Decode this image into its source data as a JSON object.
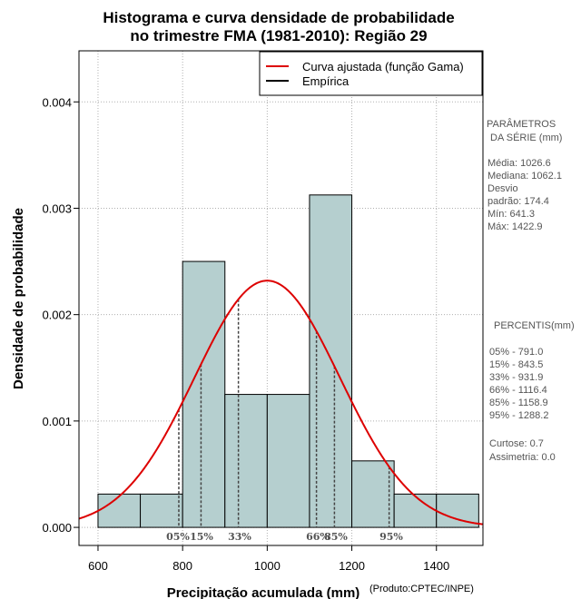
{
  "chart_data": {
    "type": "histogram",
    "title_line1": "Histograma e curva densidade de probabilidade",
    "title_line2": "no trimestre FMA (1981-2010): Região 29",
    "xlabel": "Precipitação acumulada (mm)",
    "ylabel": "Densidade de probabilidade",
    "credit": "(Produto:CPTEC/INPE)",
    "xlim": [
      555,
      1510
    ],
    "ylim": [
      -0.00017,
      0.00448
    ],
    "x_ticks": [
      600,
      800,
      1000,
      1200,
      1400
    ],
    "x_tick_labels": [
      "600",
      "800",
      "1000",
      "1200",
      "1400"
    ],
    "y_ticks": [
      0,
      0.001,
      0.002,
      0.003,
      0.004
    ],
    "y_tick_labels": [
      "0.000",
      "0.001",
      "0.002",
      "0.003",
      "0.004"
    ],
    "grid": true,
    "bar_color": "#b5cfcf",
    "curve_color": "#dd0000",
    "bins": [
      {
        "start": 600,
        "end": 700,
        "density": 0.000313
      },
      {
        "start": 700,
        "end": 800,
        "density": 0.000313
      },
      {
        "start": 800,
        "end": 900,
        "density": 0.0025
      },
      {
        "start": 900,
        "end": 1000,
        "density": 0.00125
      },
      {
        "start": 1000,
        "end": 1100,
        "density": 0.00125
      },
      {
        "start": 1100,
        "end": 1200,
        "density": 0.003125
      },
      {
        "start": 1200,
        "end": 1300,
        "density": 0.000625
      },
      {
        "start": 1300,
        "end": 1400,
        "density": 0.000313
      },
      {
        "start": 1400,
        "end": 1500,
        "density": 0.000313
      }
    ],
    "fitted_curve": {
      "mean": 1000,
      "sd": 172
    },
    "legend": {
      "position": "top-right",
      "entries": [
        {
          "label": "Curva ajustada (função Gama)",
          "color": "#dd0000"
        },
        {
          "label": "Empírica",
          "color": "#000000"
        }
      ]
    },
    "percentiles": [
      {
        "label": "05%",
        "value": 791.0
      },
      {
        "label": "15%",
        "value": 843.5
      },
      {
        "label": "33%",
        "value": 931.9
      },
      {
        "label": "66%",
        "value": 1116.4
      },
      {
        "label": "85%",
        "value": 1158.9
      },
      {
        "label": "95%",
        "value": 1288.2
      }
    ],
    "percentile_text_labels": [
      "05%",
      "15%",
      "33%",
      "66%",
      "85%",
      "95%"
    ]
  },
  "side_panel": {
    "params_title_1": "PARÂMETROS",
    "params_title_2": "DA SÉRIE (mm)",
    "stats": [
      "Média:  1026.6",
      "Mediana:  1062.1",
      "Desvio",
      "padrão:  174.4",
      "Mín:  641.3",
      "Máx:  1422.9"
    ],
    "percentis_title": "PERCENTIS(mm)",
    "percentis": [
      "05% -  791.0",
      "15% -  843.5",
      "33% -  931.9",
      "66% -  1116.4",
      "85% -  1158.9",
      "95% -  1288.2"
    ],
    "extra": [
      "Curtose:  0.7",
      "Assimetria:  0.0"
    ]
  }
}
